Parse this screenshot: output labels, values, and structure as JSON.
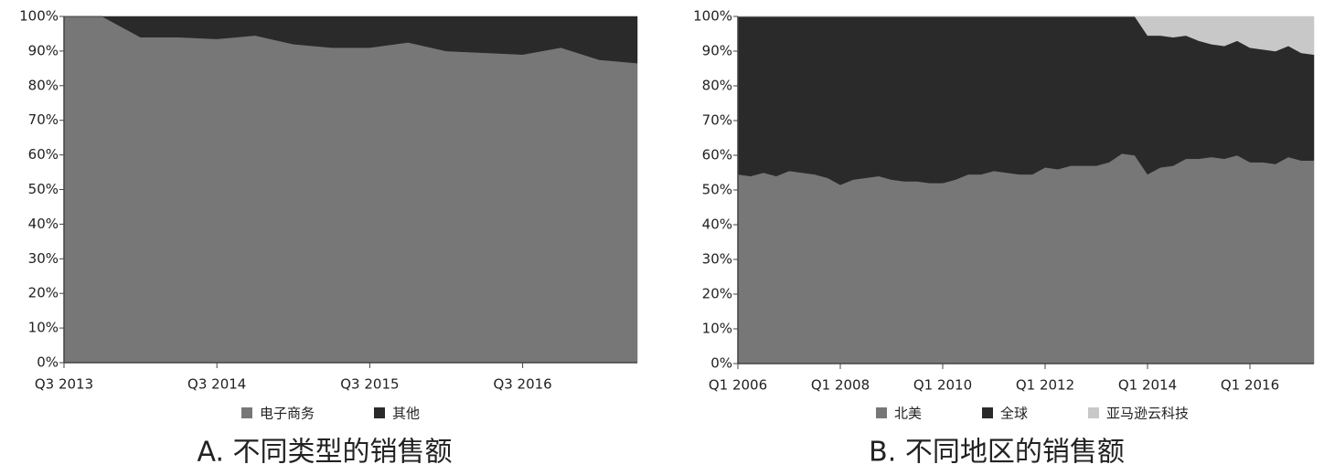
{
  "chart_data": [
    {
      "type": "area",
      "stacked": true,
      "caption": "A. 不同类型的销售额",
      "categories": [
        "Q3 2013",
        null,
        null,
        null,
        "Q3 2014",
        null,
        null,
        null,
        "Q3 2015",
        null,
        null,
        null,
        "Q3 2016",
        null,
        null,
        null
      ],
      "series": [
        {
          "name": "电子商务",
          "color": "#777777",
          "values": [
            100,
            100,
            94,
            94,
            93.5,
            94.5,
            92,
            91,
            91,
            92.5,
            90,
            89.5,
            89,
            91,
            87.5,
            86.5
          ]
        },
        {
          "name": "其他",
          "color": "#2a2a2a",
          "values": [
            0,
            0,
            6,
            6,
            6.5,
            5.5,
            8,
            9,
            9,
            7.5,
            10,
            10.5,
            11,
            9,
            12.5,
            13.5
          ]
        }
      ],
      "ylim": [
        0,
        100
      ],
      "yticks": [
        {
          "value": 0,
          "label": "0%"
        },
        {
          "value": 10,
          "label": "10%"
        },
        {
          "value": 20,
          "label": "20%"
        },
        {
          "value": 30,
          "label": "30%"
        },
        {
          "value": 40,
          "label": "40%"
        },
        {
          "value": 50,
          "label": "50%"
        },
        {
          "value": 60,
          "label": "60%"
        },
        {
          "value": 70,
          "label": "70%"
        },
        {
          "value": 80,
          "label": "80%"
        },
        {
          "value": 90,
          "label": "90%"
        },
        {
          "value": 100,
          "label": "100%"
        }
      ],
      "legend": "bottom"
    },
    {
      "type": "area",
      "stacked": true,
      "caption": "B. 不同地区的销售额",
      "categories": [
        "Q1 2006",
        null,
        null,
        null,
        null,
        null,
        null,
        null,
        "Q1 2008",
        null,
        null,
        null,
        null,
        null,
        null,
        null,
        "Q1 2010",
        null,
        null,
        null,
        null,
        null,
        null,
        null,
        "Q1 2012",
        null,
        null,
        null,
        null,
        null,
        null,
        null,
        "Q1 2014",
        null,
        null,
        null,
        null,
        null,
        null,
        null,
        "Q1 2016",
        null,
        null,
        null,
        null,
        null
      ],
      "series": [
        {
          "name": "北美",
          "color": "#777777",
          "values": [
            54.5,
            54,
            55,
            54,
            55.5,
            55,
            54.5,
            53.5,
            51.5,
            53,
            53.5,
            54,
            53,
            52.5,
            52.5,
            52,
            52,
            53,
            54.5,
            54.5,
            55.5,
            55,
            54.5,
            54.5,
            56.5,
            56,
            57,
            57,
            57,
            58,
            60.5,
            60,
            54.5,
            56.5,
            57,
            59,
            59,
            59.5,
            59,
            60,
            58,
            58,
            57.5,
            59.5,
            58.5,
            58.5
          ]
        },
        {
          "name": "全球",
          "color": "#2a2a2a",
          "values": [
            45.5,
            46,
            45,
            46,
            44.5,
            45,
            45.5,
            46.5,
            48.5,
            47,
            46.5,
            46,
            47,
            47.5,
            47.5,
            48,
            48,
            47,
            45.5,
            45.5,
            44.5,
            45,
            45.5,
            45.5,
            43.5,
            44,
            43,
            43,
            43,
            42,
            39.5,
            40,
            40,
            38,
            37,
            35.5,
            34,
            32.5,
            32.5,
            33,
            33,
            32.5,
            32.5,
            32,
            31,
            30.5
          ]
        },
        {
          "name": "亚马逊云科技",
          "color": "#c8c8c8",
          "values": [
            0,
            0,
            0,
            0,
            0,
            0,
            0,
            0,
            0,
            0,
            0,
            0,
            0,
            0,
            0,
            0,
            0,
            0,
            0,
            0,
            0,
            0,
            0,
            0,
            0,
            0,
            0,
            0,
            0,
            0,
            0,
            0,
            5.5,
            5.5,
            6,
            5.5,
            7,
            8,
            8.5,
            7,
            9,
            9.5,
            10,
            8.5,
            10.5,
            11
          ]
        }
      ],
      "ylim": [
        0,
        100
      ],
      "yticks": [
        {
          "value": 0,
          "label": "0%"
        },
        {
          "value": 10,
          "label": "10%"
        },
        {
          "value": 20,
          "label": "20%"
        },
        {
          "value": 30,
          "label": "30%"
        },
        {
          "value": 40,
          "label": "40%"
        },
        {
          "value": 50,
          "label": "50%"
        },
        {
          "value": 60,
          "label": "60%"
        },
        {
          "value": 70,
          "label": "70%"
        },
        {
          "value": 80,
          "label": "80%"
        },
        {
          "value": 90,
          "label": "90%"
        },
        {
          "value": 100,
          "label": "100%"
        }
      ],
      "legend": "bottom"
    }
  ]
}
